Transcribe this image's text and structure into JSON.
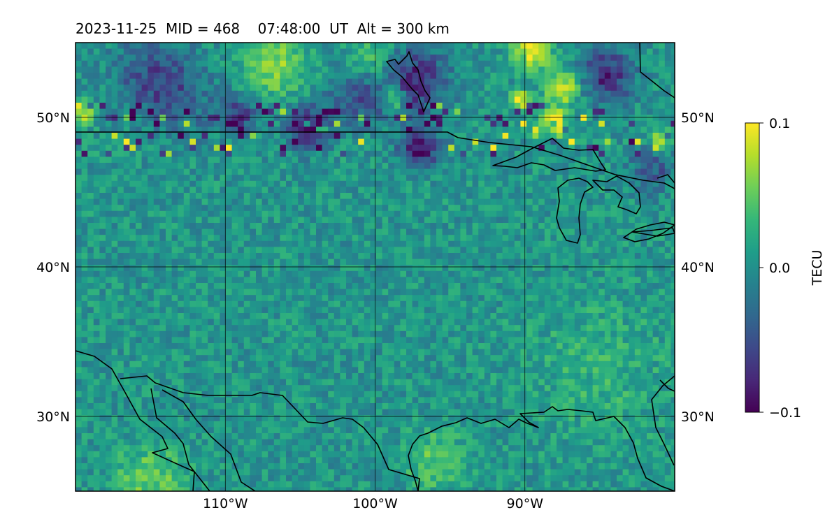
{
  "title": "2023-11-25  MID = 468    07:48:00  UT  Alt = 300 km",
  "map": {
    "lon_range": [
      -120,
      -80
    ],
    "lat_range": [
      25,
      55
    ],
    "lon_ticks": [
      {
        "value": -110,
        "label": "110°W"
      },
      {
        "value": -100,
        "label": "100°W"
      },
      {
        "value": -90,
        "label": "90°W"
      }
    ],
    "lat_ticks": [
      {
        "value": 30,
        "label": "30°N"
      },
      {
        "value": 40,
        "label": "40°N"
      },
      {
        "value": 50,
        "label": "50°N"
      }
    ]
  },
  "colorbar": {
    "label": "TECU",
    "min": -0.1,
    "max": 0.1,
    "ticks": [
      {
        "value": 0.1,
        "label": "0.1"
      },
      {
        "value": 0.0,
        "label": "0.0"
      },
      {
        "value": -0.1,
        "label": "−0.1"
      }
    ],
    "colormap": [
      "#440154",
      "#482878",
      "#3e4989",
      "#31688e",
      "#26828e",
      "#1f9e89",
      "#35b779",
      "#6ece58",
      "#b5de2b",
      "#fde725"
    ]
  },
  "field": {
    "background_value": 0.005,
    "features": [
      {
        "lon": -97.5,
        "lat": 52.5,
        "value": -0.09,
        "radius": 2.2,
        "kind": "depletion"
      },
      {
        "lon": -101.0,
        "lat": 51.5,
        "value": -0.06,
        "radius": 2.0,
        "kind": "depletion"
      },
      {
        "lon": -84.5,
        "lat": 52.8,
        "value": -0.08,
        "radius": 1.8,
        "kind": "depletion"
      },
      {
        "lon": -97.0,
        "lat": 48.0,
        "value": -0.1,
        "radius": 1.3,
        "kind": "depletion"
      },
      {
        "lon": -104.5,
        "lat": 49.3,
        "value": -0.09,
        "radius": 1.4,
        "kind": "depletion"
      },
      {
        "lon": -109.0,
        "lat": 50.2,
        "value": -0.07,
        "radius": 1.1,
        "kind": "depletion"
      },
      {
        "lon": -115.0,
        "lat": 53.0,
        "value": -0.05,
        "radius": 2.5,
        "kind": "depletion"
      },
      {
        "lon": -113.0,
        "lat": 51.0,
        "value": -0.04,
        "radius": 2.5,
        "kind": "depletion"
      },
      {
        "lon": -81.5,
        "lat": 46.5,
        "value": -0.05,
        "radius": 1.5,
        "kind": "depletion"
      },
      {
        "lon": -98.8,
        "lat": 51.3,
        "value": 0.1,
        "radius": 0.8,
        "kind": "enhancement"
      },
      {
        "lon": -89.5,
        "lat": 54.5,
        "value": 0.09,
        "radius": 1.2,
        "kind": "enhancement"
      },
      {
        "lon": -90.3,
        "lat": 51.1,
        "value": 0.1,
        "radius": 0.6,
        "kind": "enhancement"
      },
      {
        "lon": -87.5,
        "lat": 52.0,
        "value": 0.08,
        "radius": 1.2,
        "kind": "enhancement"
      },
      {
        "lon": -119.7,
        "lat": 50.4,
        "value": 0.09,
        "radius": 0.8,
        "kind": "enhancement"
      },
      {
        "lon": -106.5,
        "lat": 53.5,
        "value": 0.06,
        "radius": 2.0,
        "kind": "enhancement"
      },
      {
        "lon": -100.0,
        "lat": 53.5,
        "value": 0.05,
        "radius": 1.8,
        "kind": "enhancement"
      },
      {
        "lon": -81.0,
        "lat": 48.5,
        "value": 0.08,
        "radius": 0.7,
        "kind": "enhancement"
      },
      {
        "lon": -88.0,
        "lat": 49.6,
        "value": 0.09,
        "radius": 0.9,
        "kind": "enhancement"
      },
      {
        "lon": -115.0,
        "lat": 25.8,
        "value": 0.05,
        "radius": 2.2,
        "kind": "enhancement"
      },
      {
        "lon": -96.0,
        "lat": 27.0,
        "value": 0.04,
        "radius": 2.0,
        "kind": "enhancement"
      },
      {
        "lon": -85.0,
        "lat": 33.0,
        "value": 0.02,
        "radius": 5.0,
        "kind": "enhancement"
      }
    ]
  }
}
